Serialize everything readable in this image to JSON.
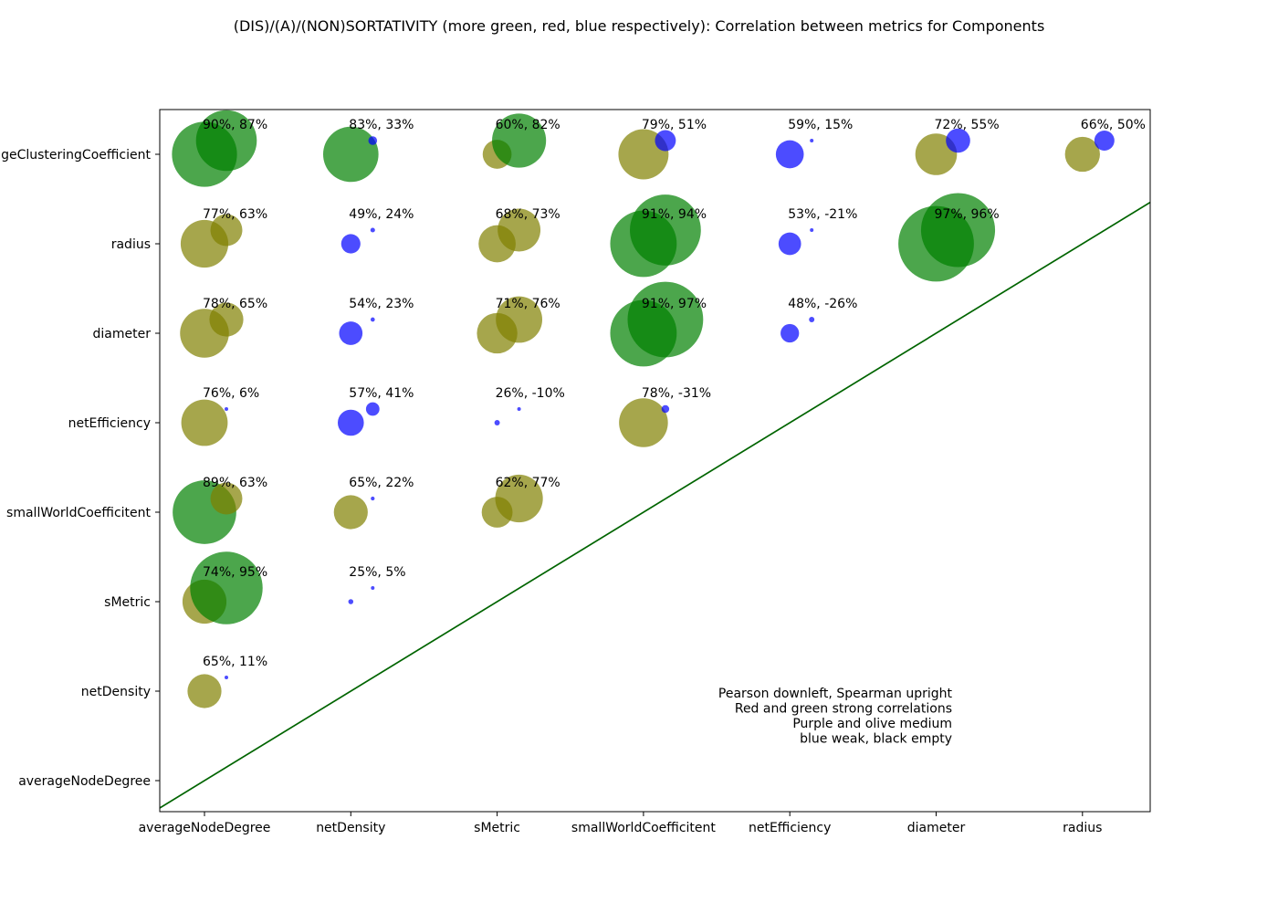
{
  "chart_data": {
    "type": "scatter",
    "title": "(DIS)/(A)/(NON)SORTATIVITY (more green, red, blue respectively): Correlation between metrics for Components",
    "x_categories": [
      "averageNodeDegree",
      "netDensity",
      "sMetric",
      "smallWorldCoefficitent",
      "netEfficiency",
      "diameter",
      "radius"
    ],
    "y_categories": [
      "averageNodeDegree",
      "netDensity",
      "sMetric",
      "smallWorldCoefficitent",
      "netEfficiency",
      "diameter",
      "radius",
      "averageClusteringCoefficient"
    ],
    "y_categories_displayed": [
      "averageNodeDegree",
      "netDensity",
      "sMetric",
      "smallWorldCoefficitent",
      "netEfficiency",
      "diameter",
      "radius",
      "ageClusteringCoefficient"
    ],
    "colors": {
      "strong": "#008000",
      "medium": "#808000",
      "weak": "#0000ff",
      "diagonal": "#006400"
    },
    "cells": [
      {
        "x": "averageNodeDegree",
        "y": "averageClusteringCoefficient",
        "pearson": 90,
        "spearman": 87,
        "label": "90%, 87%"
      },
      {
        "x": "netDensity",
        "y": "averageClusteringCoefficient",
        "pearson": 83,
        "spearman": 33,
        "label": "83%, 33%"
      },
      {
        "x": "sMetric",
        "y": "averageClusteringCoefficient",
        "pearson": 60,
        "spearman": 82,
        "label": "60%, 82%"
      },
      {
        "x": "smallWorldCoefficitent",
        "y": "averageClusteringCoefficient",
        "pearson": 79,
        "spearman": 51,
        "label": "79%, 51%"
      },
      {
        "x": "netEfficiency",
        "y": "averageClusteringCoefficient",
        "pearson": 59,
        "spearman": 15,
        "label": "59%, 15%"
      },
      {
        "x": "diameter",
        "y": "averageClusteringCoefficient",
        "pearson": 72,
        "spearman": 55,
        "label": "72%, 55%"
      },
      {
        "x": "radius",
        "y": "averageClusteringCoefficient",
        "pearson": 66,
        "spearman": 50,
        "label": "66%, 50%"
      },
      {
        "x": "averageNodeDegree",
        "y": "radius",
        "pearson": 77,
        "spearman": 63,
        "label": "77%, 63%"
      },
      {
        "x": "netDensity",
        "y": "radius",
        "pearson": 49,
        "spearman": 24,
        "label": "49%, 24%"
      },
      {
        "x": "sMetric",
        "y": "radius",
        "pearson": 68,
        "spearman": 73,
        "label": "68%, 73%"
      },
      {
        "x": "smallWorldCoefficitent",
        "y": "radius",
        "pearson": 91,
        "spearman": 94,
        "label": "91%, 94%"
      },
      {
        "x": "netEfficiency",
        "y": "radius",
        "pearson": 53,
        "spearman": -21,
        "label": "53%, -21%"
      },
      {
        "x": "diameter",
        "y": "radius",
        "pearson": 97,
        "spearman": 96,
        "label": "97%, 96%"
      },
      {
        "x": "averageNodeDegree",
        "y": "diameter",
        "pearson": 78,
        "spearman": 65,
        "label": "78%, 65%"
      },
      {
        "x": "netDensity",
        "y": "diameter",
        "pearson": 54,
        "spearman": 23,
        "label": "54%, 23%"
      },
      {
        "x": "sMetric",
        "y": "diameter",
        "pearson": 71,
        "spearman": 76,
        "label": "71%, 76%"
      },
      {
        "x": "smallWorldCoefficitent",
        "y": "diameter",
        "pearson": 91,
        "spearman": 97,
        "label": "91%, 97%"
      },
      {
        "x": "netEfficiency",
        "y": "diameter",
        "pearson": 48,
        "spearman": -26,
        "label": "48%, -26%"
      },
      {
        "x": "averageNodeDegree",
        "y": "netEfficiency",
        "pearson": 76,
        "spearman": 6,
        "label": "76%, 6%"
      },
      {
        "x": "netDensity",
        "y": "netEfficiency",
        "pearson": 57,
        "spearman": 41,
        "label": "57%, 41%"
      },
      {
        "x": "sMetric",
        "y": "netEfficiency",
        "pearson": 26,
        "spearman": -10,
        "label": "26%, -10%"
      },
      {
        "x": "smallWorldCoefficitent",
        "y": "netEfficiency",
        "pearson": 78,
        "spearman": -31,
        "label": "78%, -31%"
      },
      {
        "x": "averageNodeDegree",
        "y": "smallWorldCoefficitent",
        "pearson": 89,
        "spearman": 63,
        "label": "89%, 63%"
      },
      {
        "x": "netDensity",
        "y": "smallWorldCoefficitent",
        "pearson": 65,
        "spearman": 22,
        "label": "65%, 22%"
      },
      {
        "x": "sMetric",
        "y": "smallWorldCoefficitent",
        "pearson": 62,
        "spearman": 77,
        "label": "62%, 77%"
      },
      {
        "x": "averageNodeDegree",
        "y": "sMetric",
        "pearson": 74,
        "spearman": 95,
        "label": "74%, 95%"
      },
      {
        "x": "netDensity",
        "y": "sMetric",
        "pearson": 25,
        "spearman": 5,
        "label": "25%, 5%"
      },
      {
        "x": "averageNodeDegree",
        "y": "netDensity",
        "pearson": 65,
        "spearman": 11,
        "label": "65%, 11%"
      }
    ],
    "notes": [
      "Pearson downleft, Spearman upright",
      "Red and green strong correlations",
      "Purple and olive medium",
      "blue weak, black empty"
    ]
  }
}
